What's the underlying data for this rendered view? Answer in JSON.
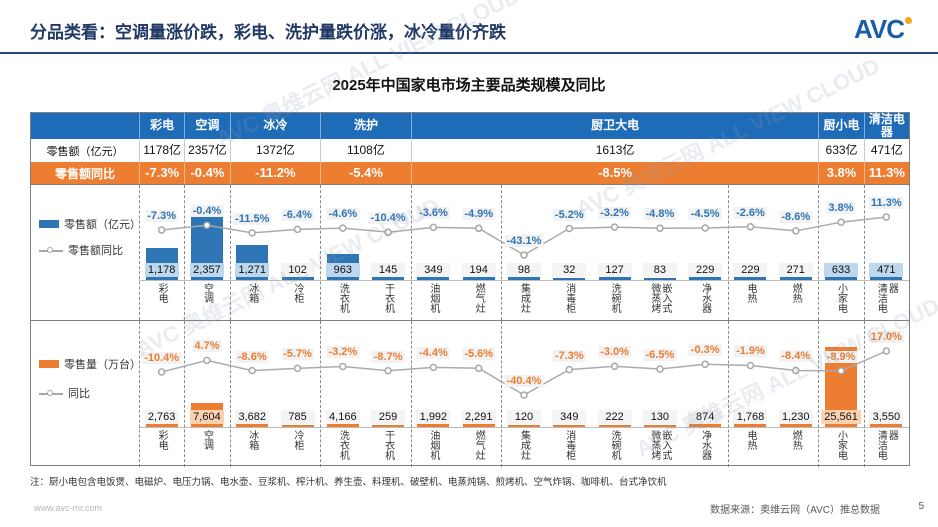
{
  "page": {
    "title": "分品类看：空调量涨价跌，彩电、洗护量跌价涨，冰冷量价齐跌",
    "logo": "AVC",
    "chart_title": "2025年中国家电市场主要品类规模及同比",
    "footnote": "注：厨小电包含电饭煲、电磁炉、电压力锅、电水壶、豆浆机、榨汁机、养生壶、料理机、破壁机、电蒸炖锅、煎烤机、空气炸锅、咖啡机、台式净饮机",
    "footer_left": "www.avc-mr.com",
    "footer_source": "数据来源：奥维云网（AVC）推总数据",
    "page_number": "5",
    "watermark": "AVC 奥维云网 ALL VIEW CLOUD"
  },
  "colors": {
    "header_blue": "#1E6BB8",
    "accent_orange": "#ED7D31",
    "bar_blue": "#2E75B6",
    "tint_blue": "#BDD7EE",
    "tint_orange": "#FAD2B0",
    "line_gray": "#A6A6A6",
    "title_navy": "#1F3864"
  },
  "table": {
    "row_labels": [
      "零售额（亿元）",
      "零售额同比"
    ],
    "groups": [
      {
        "label": "彩电",
        "span": 1,
        "amount": "1178亿",
        "yoy": "-7.3%"
      },
      {
        "label": "空调",
        "span": 1,
        "amount": "2357亿",
        "yoy": "-0.4%"
      },
      {
        "label": "冰冷",
        "span": 2,
        "amount": "1372亿",
        "yoy": "-11.2%"
      },
      {
        "label": "洗护",
        "span": 2,
        "amount": "1108亿",
        "yoy": "-5.4%"
      },
      {
        "label": "厨卫大电",
        "span": 9,
        "amount": "1613亿",
        "yoy": "-8.5%"
      },
      {
        "label": "厨小电",
        "span": 1,
        "amount": "633亿",
        "yoy": "3.8%"
      },
      {
        "label": "清洁电器",
        "span": 1,
        "amount": "471亿",
        "yoy": "11.3%"
      }
    ]
  },
  "chart_data": [
    {
      "type": "bar+line",
      "title": "零售额及同比",
      "categories": [
        "彩电",
        "空调",
        "冰箱",
        "冷柜",
        "洗衣机",
        "干衣机",
        "油烟机",
        "燃气灶",
        "集成灶",
        "消毒柜",
        "洗碗机",
        "微蒸烤嵌入式",
        "净水器",
        "电热",
        "燃热",
        "小家电",
        "清洁电器"
      ],
      "bar_series": {
        "name": "零售额（亿元）",
        "values": [
          1178,
          2357,
          1271,
          102,
          963,
          145,
          349,
          194,
          98,
          32,
          127,
          83,
          229,
          229,
          271,
          633,
          471
        ],
        "labels": [
          "1,178",
          "2,357",
          "1,271",
          "102",
          "963",
          "145",
          "349",
          "194",
          "98",
          "32",
          "127",
          "83",
          "229",
          "229",
          "271",
          "633",
          "471"
        ]
      },
      "line_series": {
        "name": "零售额同比",
        "values": [
          -7.3,
          -0.4,
          -11.5,
          -6.4,
          -4.6,
          -10.4,
          -3.6,
          -4.9,
          -43.1,
          -5.2,
          -3.2,
          -4.8,
          -4.5,
          -2.6,
          -8.6,
          3.8,
          11.3
        ],
        "labels": [
          "-7.3%",
          "-0.4%",
          "-11.5%",
          "-6.4%",
          "-4.6%",
          "-10.4%",
          "-3.6%",
          "-4.9%",
          "-43.1%",
          "-5.2%",
          "-3.2%",
          "-4.8%",
          "-4.5%",
          "-2.6%",
          "-8.6%",
          "3.8%",
          "11.3%"
        ]
      },
      "separators_after": [
        0,
        1,
        3,
        5,
        7,
        12,
        14,
        15
      ],
      "bar_color": "#2E75B6",
      "tint_color": "#BDD7EE",
      "pct_color": "#2E75B6"
    },
    {
      "type": "bar+line",
      "title": "零售量及同比",
      "categories": [
        "彩电",
        "空调",
        "冰箱",
        "冷柜",
        "洗衣机",
        "干衣机",
        "油烟机",
        "燃气灶",
        "集成灶",
        "消毒柜",
        "洗碗机",
        "微蒸烤嵌入式",
        "净水器",
        "电热",
        "燃热",
        "小家电",
        "清洁电器"
      ],
      "bar_series": {
        "name": "零售量（万台）",
        "values": [
          2763,
          7604,
          3682,
          785,
          4166,
          259,
          1992,
          2291,
          120,
          349,
          222,
          130,
          874,
          1768,
          1230,
          25561,
          3550
        ],
        "labels": [
          "2,763",
          "7,604",
          "3,682",
          "785",
          "4,166",
          "259",
          "1,992",
          "2,291",
          "120",
          "349",
          "222",
          "130",
          "874",
          "1,768",
          "1,230",
          "25,561",
          "3,550"
        ]
      },
      "line_series": {
        "name": "同比",
        "values": [
          -10.4,
          4.7,
          -8.6,
          -5.7,
          -3.2,
          -8.7,
          -4.4,
          -5.6,
          -40.4,
          -7.3,
          -3.0,
          -6.5,
          -0.3,
          -1.9,
          -8.4,
          -8.9,
          17.0
        ],
        "labels": [
          "-10.4%",
          "4.7%",
          "-8.6%",
          "-5.7%",
          "-3.2%",
          "-8.7%",
          "-4.4%",
          "-5.6%",
          "-40.4%",
          "-7.3%",
          "-3.0%",
          "-6.5%",
          "-0.3%",
          "-1.9%",
          "-8.4%",
          "-8.9%",
          "17.0%"
        ]
      },
      "separators_after": [
        0,
        1,
        3,
        5,
        7,
        12,
        14,
        15
      ],
      "bar_color": "#ED7D31",
      "tint_color": "#FAD2B0",
      "pct_color": "#ED7D31"
    }
  ]
}
